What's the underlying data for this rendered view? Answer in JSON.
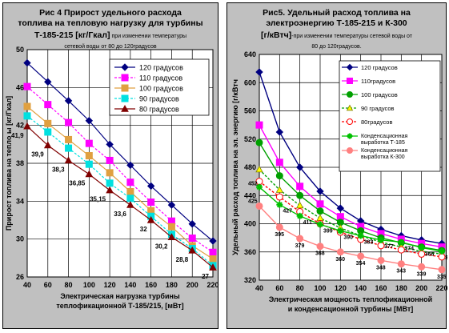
{
  "chart_data": [
    {
      "type": "line",
      "title_line1": "Рис 4  Прирост удельного расхода",
      "title_line2": "топлива на тепловую нагрузку для  турбины",
      "title_line3_bold": "Т-185-215 [кг/Гкал]",
      "title_line3_small": " при изменении  температуры",
      "title_line4_small": "сетевой воды  от 80 до  120градусов",
      "xlabel_line1": "Электрическая нагрузка турбины",
      "xlabel_line2": "теплофикационной Т-185/215, [мВт]",
      "ylabel": "Прирост   топлива  на   тепло  ы [кг/Гкал]",
      "x": [
        40,
        60,
        80,
        100,
        120,
        140,
        160,
        180,
        200,
        220
      ],
      "xlim": [
        40,
        220
      ],
      "ylim": [
        26,
        50
      ],
      "yticks": [
        26,
        30,
        34,
        38,
        42,
        46,
        50
      ],
      "grid": true,
      "legend_position": "top-right",
      "series": [
        {
          "name": "120 градусов",
          "color": "#000080",
          "marker": "diamond",
          "dash": "",
          "values": [
            48.6,
            46.6,
            44.6,
            42.5,
            40.0,
            37.8,
            35.6,
            33.6,
            31.6,
            29.8
          ]
        },
        {
          "name": "110 градусов",
          "color": "#ff00ff",
          "marker": "square",
          "dash": "3,2",
          "values": [
            46.1,
            44.2,
            42.3,
            40.1,
            38.3,
            36.0,
            33.9,
            31.9,
            30.1,
            28.6
          ]
        },
        {
          "name": "100 градусов",
          "color": "#e0a040",
          "marker": "square",
          "dash": "",
          "values": [
            44.0,
            42.2,
            40.5,
            38.8,
            37.0,
            35.0,
            33.0,
            31.3,
            29.3,
            27.9
          ]
        },
        {
          "name": "90 градусов",
          "color": "#00e0e0",
          "marker": "square",
          "dash": "3,2",
          "values": [
            43.0,
            41.3,
            39.6,
            37.9,
            35.9,
            34.3,
            32.4,
            30.5,
            29.0,
            27.2
          ]
        },
        {
          "name": "80 градусов",
          "color": "#800000",
          "marker": "triangle",
          "dash": "",
          "values": [
            41.9,
            39.9,
            38.3,
            36.85,
            35.15,
            33.6,
            32.0,
            30.2,
            28.8,
            27.0
          ]
        }
      ],
      "data_labels": [
        {
          "x": 40,
          "text": "41,9"
        },
        {
          "x": 60,
          "text": "39,9"
        },
        {
          "x": 80,
          "text": "38,3"
        },
        {
          "x": 100,
          "text": "36,85"
        },
        {
          "x": 120,
          "text": "35,15"
        },
        {
          "x": 140,
          "text": "33,6"
        },
        {
          "x": 160,
          "text": "32"
        },
        {
          "x": 180,
          "text": "30,2"
        },
        {
          "x": 200,
          "text": "28,8"
        },
        {
          "x": 220,
          "text": "27"
        }
      ]
    },
    {
      "type": "line",
      "title_line1": "Рис5. Удельный расход топлива на",
      "title_line2": "электроэнергию  Т-185-215 и К-300",
      "title_line3_bold": "[г/кВтч]",
      "title_line3_small": "-при изменении  температуры сетевой воды от",
      "title_line4_small": "80 до 120градусов.",
      "xlabel_line1": "Электрическая мощность теплофикационной",
      "xlabel_line2": "и конденсационной турбины    [МВт]",
      "ylabel": "Удельный расход топлива на эл. энергию [г/кВтч",
      "x": [
        40,
        60,
        80,
        100,
        120,
        140,
        160,
        180,
        200,
        220
      ],
      "xlim": [
        40,
        220
      ],
      "ylim": [
        320,
        640
      ],
      "yticks": [
        320,
        360,
        400,
        440,
        480,
        520,
        560,
        600,
        640
      ],
      "grid": true,
      "legend_position": "top-right",
      "series": [
        {
          "name": "120 градусов",
          "color": "#000080",
          "marker": "diamond",
          "dash": "",
          "values": [
            615,
            530,
            480,
            446,
            422,
            404,
            392,
            383,
            377,
            372
          ]
        },
        {
          "name": "110градусов",
          "color": "#ff00ff",
          "marker": "square",
          "dash": "",
          "values": [
            540,
            487,
            453,
            428,
            410,
            396,
            386,
            378,
            372,
            367
          ]
        },
        {
          "name": "100 градусов",
          "color": "#00a000",
          "marker": "circle",
          "dash": "",
          "values": [
            515,
            468,
            440,
            418,
            402,
            390,
            380,
            373,
            367,
            362
          ]
        },
        {
          "name": "90 градусов",
          "color": "#00a000",
          "marker": "triangle-open",
          "dash": "3,2",
          "values": [
            477,
            448,
            426,
            408,
            394,
            383,
            374,
            367,
            361,
            357
          ]
        },
        {
          "name": "80градусов",
          "color": "#ff0000",
          "marker": "circle-open",
          "dash": "3,2",
          "values": [
            460,
            438,
            417,
            400,
            388,
            378,
            369,
            363,
            357,
            353
          ]
        },
        {
          "name": "Конденсационная выработка Т-185",
          "color": "#00c000",
          "marker": "star",
          "dash": "",
          "values": [
            452,
            427,
            411,
            399,
            390,
            383,
            377,
            374,
            366,
            361
          ]
        },
        {
          "name": "Конденсационная выработка К-300",
          "color": "#ff8080",
          "marker": "circle",
          "dash": "",
          "values": [
            425,
            395,
            379,
            368,
            360,
            354,
            348,
            343,
            339,
            335
          ]
        }
      ],
      "data_labels_series5": [
        {
          "x": 40,
          "text": "452"
        },
        {
          "x": 60,
          "text": "427"
        },
        {
          "x": 80,
          "text": "411"
        },
        {
          "x": 100,
          "text": "399"
        },
        {
          "x": 120,
          "text": "390"
        },
        {
          "x": 140,
          "text": "383"
        },
        {
          "x": 160,
          "text": "377"
        },
        {
          "x": 180,
          "text": "374"
        },
        {
          "x": 200,
          "text": "366"
        },
        {
          "x": 220,
          "text": "361"
        }
      ],
      "data_labels_series6": [
        {
          "x": 40,
          "text": "425"
        },
        {
          "x": 60,
          "text": "395"
        },
        {
          "x": 80,
          "text": "379"
        },
        {
          "x": 100,
          "text": "368"
        },
        {
          "x": 120,
          "text": "360"
        },
        {
          "x": 140,
          "text": "354"
        },
        {
          "x": 160,
          "text": "348"
        },
        {
          "x": 180,
          "text": "343"
        },
        {
          "x": 200,
          "text": "339"
        },
        {
          "x": 220,
          "text": "335"
        }
      ]
    }
  ]
}
